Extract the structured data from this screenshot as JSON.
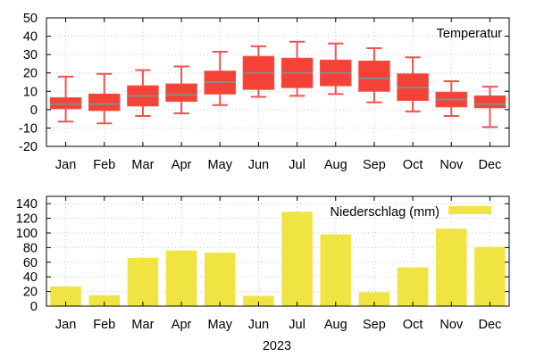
{
  "colors": {
    "box_fill": "#f44336",
    "box_edge": "#ef5350",
    "median": "#8a8a8a",
    "bar_fill": "#f0e442"
  },
  "chart_data": [
    {
      "type": "box",
      "title": "",
      "legend": "Temperatur",
      "legend_position": "top-right",
      "categories": [
        "Jan",
        "Feb",
        "Mar",
        "Apr",
        "May",
        "Jun",
        "Jul",
        "Aug",
        "Sep",
        "Oct",
        "Nov",
        "Dec"
      ],
      "stats": [
        {
          "min": -6.5,
          "q1": 0.5,
          "median": 3,
          "q3": 6.5,
          "max": 18
        },
        {
          "min": -7.5,
          "q1": -0.5,
          "median": 3,
          "q3": 8.5,
          "max": 19.5
        },
        {
          "min": -3.5,
          "q1": 2,
          "median": 7.5,
          "q3": 13,
          "max": 21.5
        },
        {
          "min": -2,
          "q1": 4.5,
          "median": 8,
          "q3": 14,
          "max": 23.5
        },
        {
          "min": 2.5,
          "q1": 8.5,
          "median": 15,
          "q3": 21,
          "max": 31.5
        },
        {
          "min": 7,
          "q1": 11,
          "median": 20,
          "q3": 29,
          "max": 34.5
        },
        {
          "min": 7.5,
          "q1": 12,
          "median": 20,
          "q3": 28,
          "max": 37
        },
        {
          "min": 8.5,
          "q1": 13,
          "median": 20,
          "q3": 27,
          "max": 36
        },
        {
          "min": 4,
          "q1": 10,
          "median": 17,
          "q3": 26.5,
          "max": 33.5
        },
        {
          "min": -1,
          "q1": 5,
          "median": 12,
          "q3": 19.5,
          "max": 28.5
        },
        {
          "min": -3.5,
          "q1": 1.5,
          "median": 5.5,
          "q3": 9.5,
          "max": 15.5
        },
        {
          "min": -9.5,
          "q1": 1,
          "median": 3,
          "q3": 7.5,
          "max": 12.5
        }
      ],
      "yticks": [
        -20,
        -10,
        0,
        10,
        20,
        30,
        40,
        50
      ],
      "ylim": [
        -20,
        50
      ],
      "xlabel": "",
      "ylabel": "",
      "grid": true
    },
    {
      "type": "bar",
      "title": "",
      "legend": "Niederschlag (mm)",
      "legend_position": "top-right",
      "categories": [
        "Jan",
        "Feb",
        "Mar",
        "Apr",
        "May",
        "Jun",
        "Jul",
        "Aug",
        "Sep",
        "Oct",
        "Nov",
        "Dec"
      ],
      "values": [
        27,
        15,
        66,
        76,
        73,
        14,
        129,
        98,
        19,
        53,
        106,
        81
      ],
      "yticks": [
        0,
        20,
        40,
        60,
        80,
        100,
        120,
        140
      ],
      "ylim": [
        0,
        150
      ],
      "xlabel": "2023",
      "ylabel": "",
      "grid": true
    }
  ]
}
